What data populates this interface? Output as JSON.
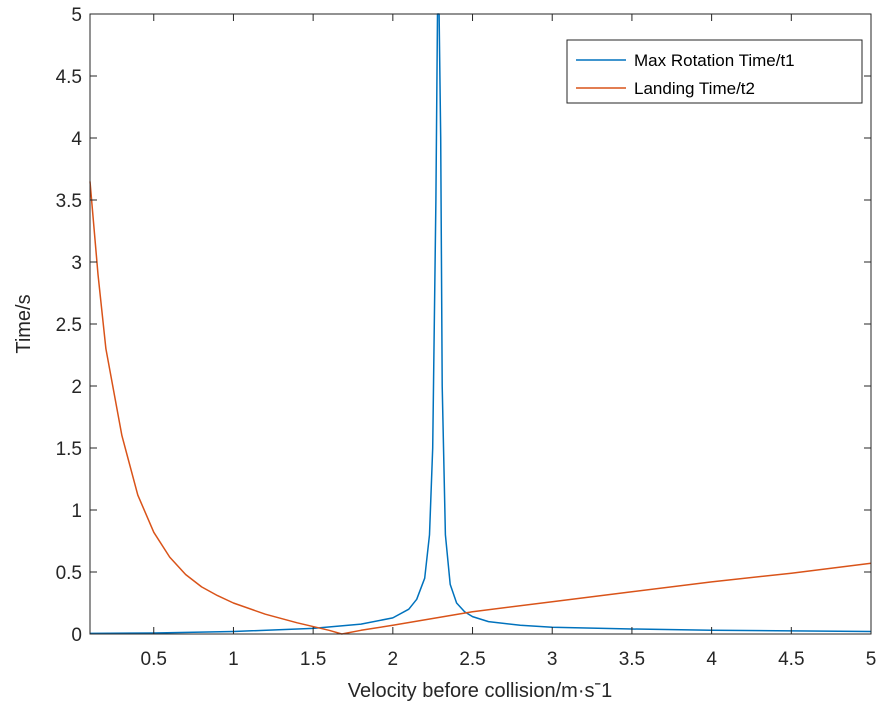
{
  "chart_data": {
    "type": "line",
    "title": "",
    "xlabel": "Velocity before collision/m·sˉ1",
    "ylabel": "Time/s",
    "xlim": [
      0.1,
      5
    ],
    "ylim": [
      0,
      5
    ],
    "xticks": [
      0.5,
      1,
      1.5,
      2,
      2.5,
      3,
      3.5,
      4,
      4.5,
      5
    ],
    "xtick_labels": [
      "0.5",
      "1",
      "1.5",
      "2",
      "2.5",
      "3",
      "3.5",
      "4",
      "4.5",
      "5"
    ],
    "yticks": [
      0,
      0.5,
      1,
      1.5,
      2,
      2.5,
      3,
      3.5,
      4,
      4.5,
      5
    ],
    "ytick_labels": [
      "0",
      "0.5",
      "1",
      "1.5",
      "2",
      "2.5",
      "3",
      "3.5",
      "4",
      "4.5",
      "5"
    ],
    "grid": false,
    "legend_position": "top-right",
    "series": [
      {
        "name": "Max Rotation Time/t1",
        "color": "#0072BD",
        "x": [
          0.1,
          0.5,
          1.0,
          1.5,
          1.8,
          2.0,
          2.1,
          2.15,
          2.2,
          2.23,
          2.25,
          2.27,
          2.28,
          2.29,
          2.3,
          2.31,
          2.33,
          2.36,
          2.4,
          2.45,
          2.5,
          2.6,
          2.8,
          3.0,
          3.5,
          4.0,
          4.5,
          5.0
        ],
        "y": [
          0.005,
          0.008,
          0.02,
          0.045,
          0.08,
          0.13,
          0.2,
          0.28,
          0.45,
          0.8,
          1.5,
          3.5,
          5.0,
          5.0,
          4.0,
          2.0,
          0.8,
          0.4,
          0.25,
          0.18,
          0.14,
          0.1,
          0.07,
          0.055,
          0.04,
          0.03,
          0.025,
          0.02
        ]
      },
      {
        "name": "Landing Time/t2",
        "color": "#D95319",
        "x": [
          0.1,
          0.15,
          0.2,
          0.3,
          0.4,
          0.5,
          0.6,
          0.7,
          0.8,
          0.9,
          1.0,
          1.2,
          1.4,
          1.6,
          1.68,
          1.8,
          2.0,
          2.5,
          3.0,
          3.5,
          4.0,
          4.5,
          5.0
        ],
        "y": [
          3.65,
          2.9,
          2.3,
          1.6,
          1.12,
          0.82,
          0.62,
          0.48,
          0.38,
          0.31,
          0.25,
          0.16,
          0.09,
          0.03,
          0.0,
          0.03,
          0.07,
          0.18,
          0.26,
          0.34,
          0.42,
          0.49,
          0.57
        ]
      }
    ]
  }
}
